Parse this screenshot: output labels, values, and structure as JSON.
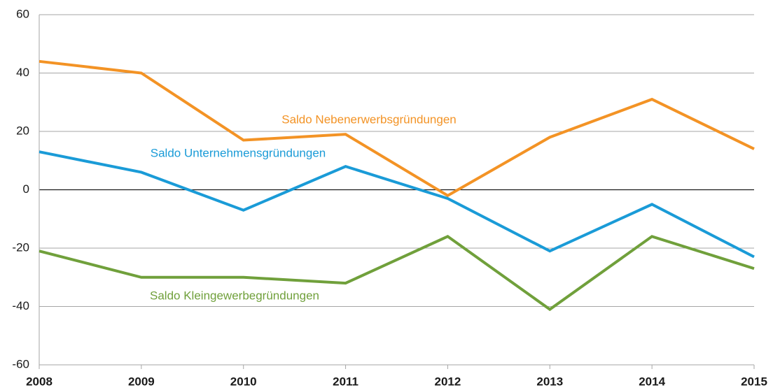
{
  "chart_data": {
    "type": "line",
    "categories": [
      "2008",
      "2009",
      "2010",
      "2011",
      "2012",
      "2013",
      "2014",
      "2015"
    ],
    "series": [
      {
        "name": "Saldo Nebenerwerbsgründungen",
        "color": "#f39325",
        "values": [
          44,
          40,
          17,
          19,
          -2,
          18,
          31,
          14
        ]
      },
      {
        "name": "Saldo Unternehmensgründungen",
        "color": "#1a9bd7",
        "values": [
          13,
          6,
          -7,
          8,
          -3,
          -21,
          -5,
          -23
        ]
      },
      {
        "name": "Saldo Kleingewerbegründungen",
        "color": "#70a03b",
        "values": [
          -21,
          -30,
          -30,
          -32,
          -16,
          -41,
          -16,
          -27
        ]
      }
    ],
    "ylim": [
      -60,
      60
    ],
    "yticks": [
      -60,
      -40,
      -20,
      0,
      20,
      40,
      60
    ],
    "grid": true
  }
}
